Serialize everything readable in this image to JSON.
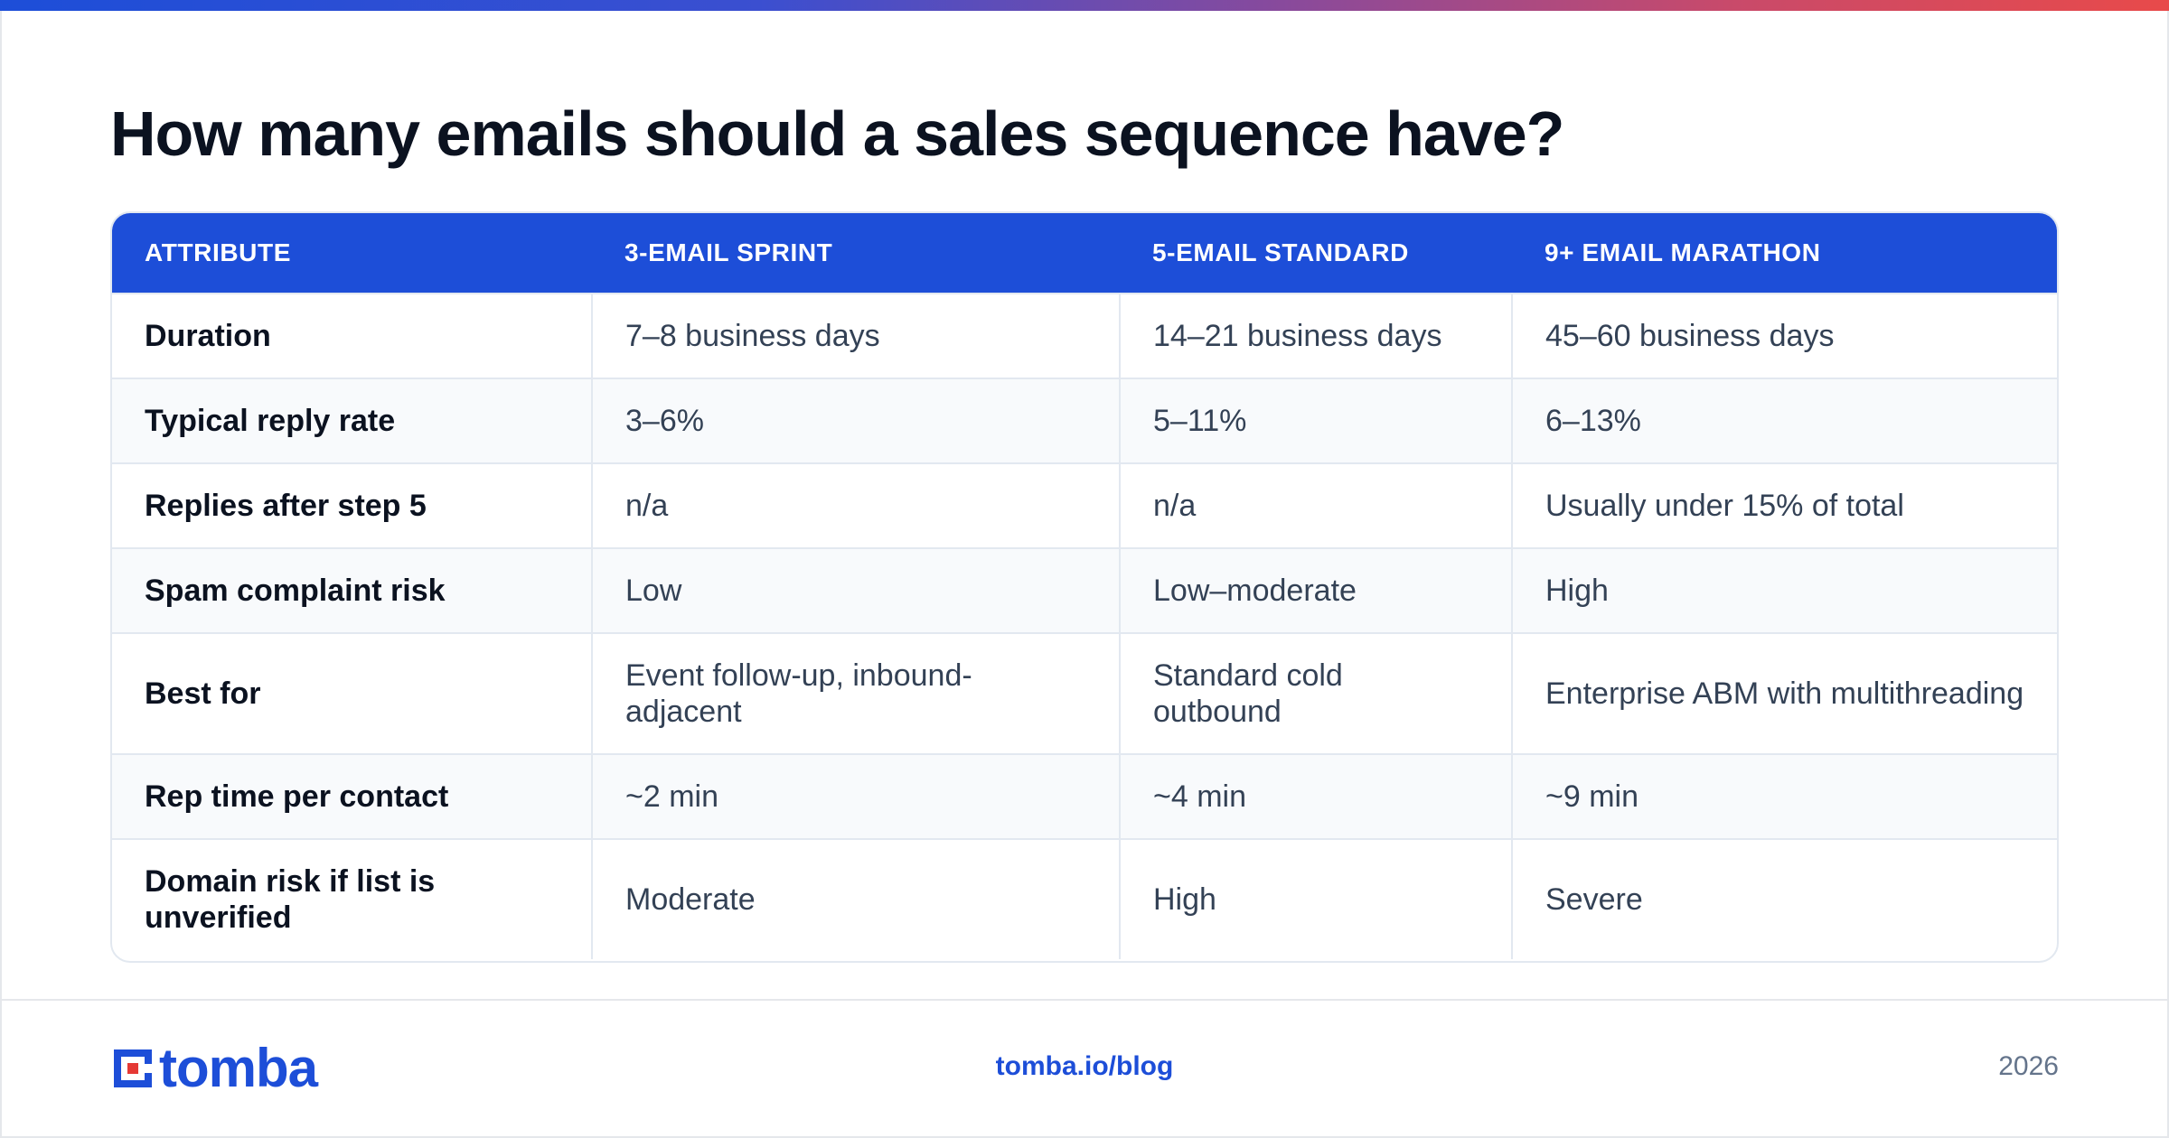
{
  "title": "How many emails should a sales sequence have?",
  "colors": {
    "accent": "#1d4ed8",
    "header_text": "#ffffff",
    "body_text": "#334155",
    "alt_row": "#f8fafc"
  },
  "table": {
    "headers": [
      "ATTRIBUTE",
      "3-EMAIL SPRINT",
      "5-EMAIL STANDARD",
      "9+ EMAIL MARATHON"
    ],
    "rows": [
      [
        "Duration",
        "7–8 business days",
        "14–21 business days",
        "45–60 business days"
      ],
      [
        "Typical reply rate",
        "3–6%",
        "5–11%",
        "6–13%"
      ],
      [
        "Replies after step 5",
        "n/a",
        "n/a",
        "Usually under 15% of total"
      ],
      [
        "Spam complaint risk",
        "Low",
        "Low–moderate",
        "High"
      ],
      [
        "Best for",
        "Event follow-up, inbound-adjacent",
        "Standard cold outbound",
        "Enterprise ABM with multithreading"
      ],
      [
        "Rep time per contact",
        "~2 min",
        "~4 min",
        "~9 min"
      ],
      [
        "Domain risk if list is unverified",
        "Moderate",
        "High",
        "Severe"
      ]
    ]
  },
  "footer": {
    "logo_text": "tomba",
    "logo_icon": "tomba-logo-icon",
    "link": "tomba.io/blog",
    "year": "2026"
  }
}
